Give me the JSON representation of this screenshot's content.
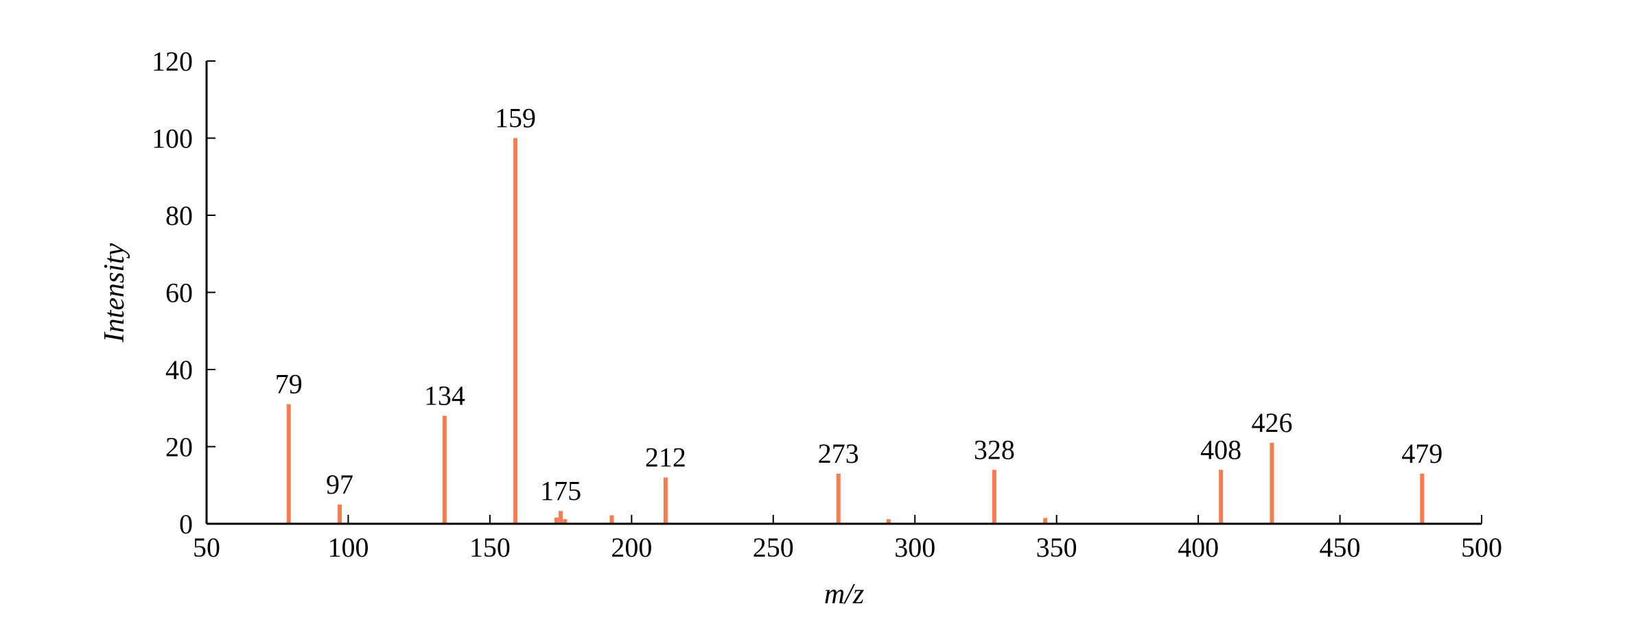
{
  "chart_data": {
    "type": "stem",
    "x_label": "m/z",
    "y_label": "Intensity",
    "color": "#f47c4e",
    "xlim": [
      50,
      500
    ],
    "xticks": [
      50,
      100,
      150,
      200,
      250,
      300,
      350,
      400,
      450,
      500
    ],
    "ylim": [
      0,
      120
    ],
    "yticks": [
      0,
      20,
      40,
      60,
      80,
      100,
      120
    ],
    "series": [
      {
        "labeled": true,
        "x": [
          79,
          97,
          134,
          159,
          175,
          212,
          273,
          328,
          408,
          426,
          479
        ],
        "values": [
          31,
          5,
          28,
          100,
          3.3,
          12,
          13,
          14,
          14,
          21,
          13
        ]
      },
      {
        "labeled": false,
        "x": [
          173.5,
          176.5,
          193,
          290.7,
          346
        ],
        "values": [
          1.6,
          1.2,
          2.2,
          1.2,
          1.5
        ]
      }
    ]
  }
}
